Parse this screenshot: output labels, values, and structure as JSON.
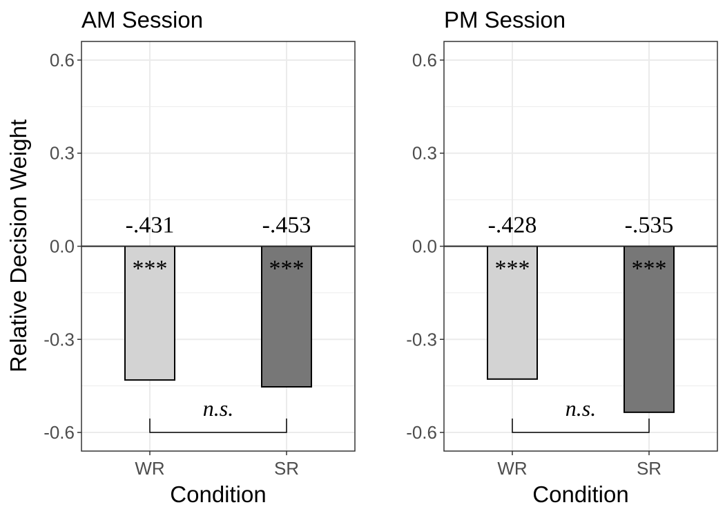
{
  "figure": {
    "ylabel": "Relative Decision Weight"
  },
  "chart_data": [
    {
      "type": "bar",
      "title": "AM Session",
      "xlabel": "Condition",
      "ylabel": "Relative Decision Weight",
      "categories": [
        "WR",
        "SR"
      ],
      "values": [
        -0.431,
        -0.453
      ],
      "value_labels": [
        "-.431",
        "-.453"
      ],
      "significance_labels": [
        "***",
        "***"
      ],
      "bar_colors": [
        "#d3d3d3",
        "#777777"
      ],
      "comparison_label": "n.s.",
      "ylim": [
        -0.66,
        0.66
      ],
      "yticks": [
        0.6,
        0.3,
        0.0,
        -0.3,
        -0.6
      ],
      "ytick_labels": [
        "0.6",
        "0.3",
        "0.0",
        "-0.3",
        "-0.6"
      ],
      "grid": true,
      "zero_line": true
    },
    {
      "type": "bar",
      "title": "PM Session",
      "xlabel": "Condition",
      "categories": [
        "WR",
        "SR"
      ],
      "values": [
        -0.428,
        -0.535
      ],
      "value_labels": [
        "-.428",
        "-.535"
      ],
      "significance_labels": [
        "***",
        "***"
      ],
      "bar_colors": [
        "#d3d3d3",
        "#777777"
      ],
      "comparison_label": "n.s.",
      "ylim": [
        -0.66,
        0.66
      ],
      "yticks": [
        0.6,
        0.3,
        0.0,
        -0.3,
        -0.6
      ],
      "ytick_labels": [
        "0.6",
        "0.3",
        "0.0",
        "-0.3",
        "-0.6"
      ],
      "grid": true,
      "zero_line": true
    }
  ],
  "colors": {
    "grid": "#ebebeb",
    "panel_border": "#333333",
    "bar_outline": "#000000",
    "tick_text": "#4d4d4d",
    "title_text": "#000000"
  }
}
